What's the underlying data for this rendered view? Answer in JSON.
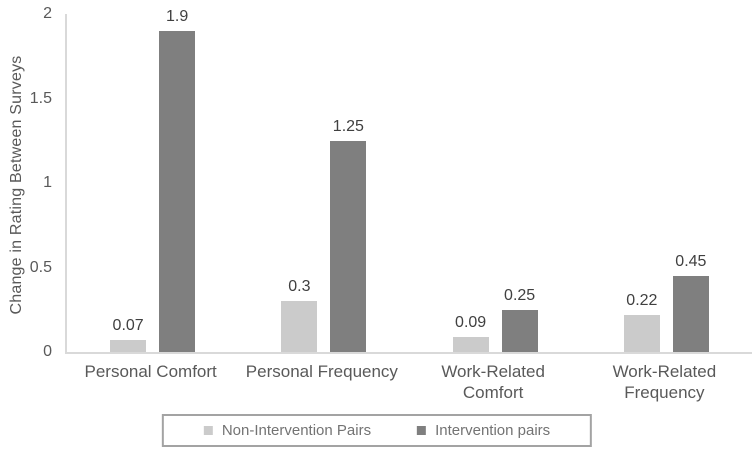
{
  "chart_data": {
    "type": "bar",
    "title": "",
    "xlabel": "",
    "ylabel": "Change in Rating Between Surveys",
    "categories": [
      "Personal Comfort",
      "Personal Frequency",
      "Work-Related\nComfort",
      "Work-Related\nFrequency"
    ],
    "series": [
      {
        "name": "Non-Intervention Pairs",
        "color": "#cbcbcb",
        "values": [
          0.07,
          0.3,
          0.09,
          0.22
        ]
      },
      {
        "name": "Intervention pairs",
        "color": "#7f7f7f",
        "values": [
          1.9,
          1.25,
          0.25,
          0.45
        ]
      }
    ],
    "yticks": [
      0,
      0.5,
      1,
      1.5,
      2
    ],
    "ylim": [
      0,
      2
    ],
    "grid": false,
    "legend_position": "bottom-center-boxed",
    "value_labels": true
  },
  "colors": {
    "background": "#ffffff",
    "axis_line": "#d9d9d9",
    "tick_text": "#595959",
    "category_text": "#595959",
    "value_text": "#404040",
    "legend_text": "#737373",
    "legend_border": "#a3a3a3"
  }
}
